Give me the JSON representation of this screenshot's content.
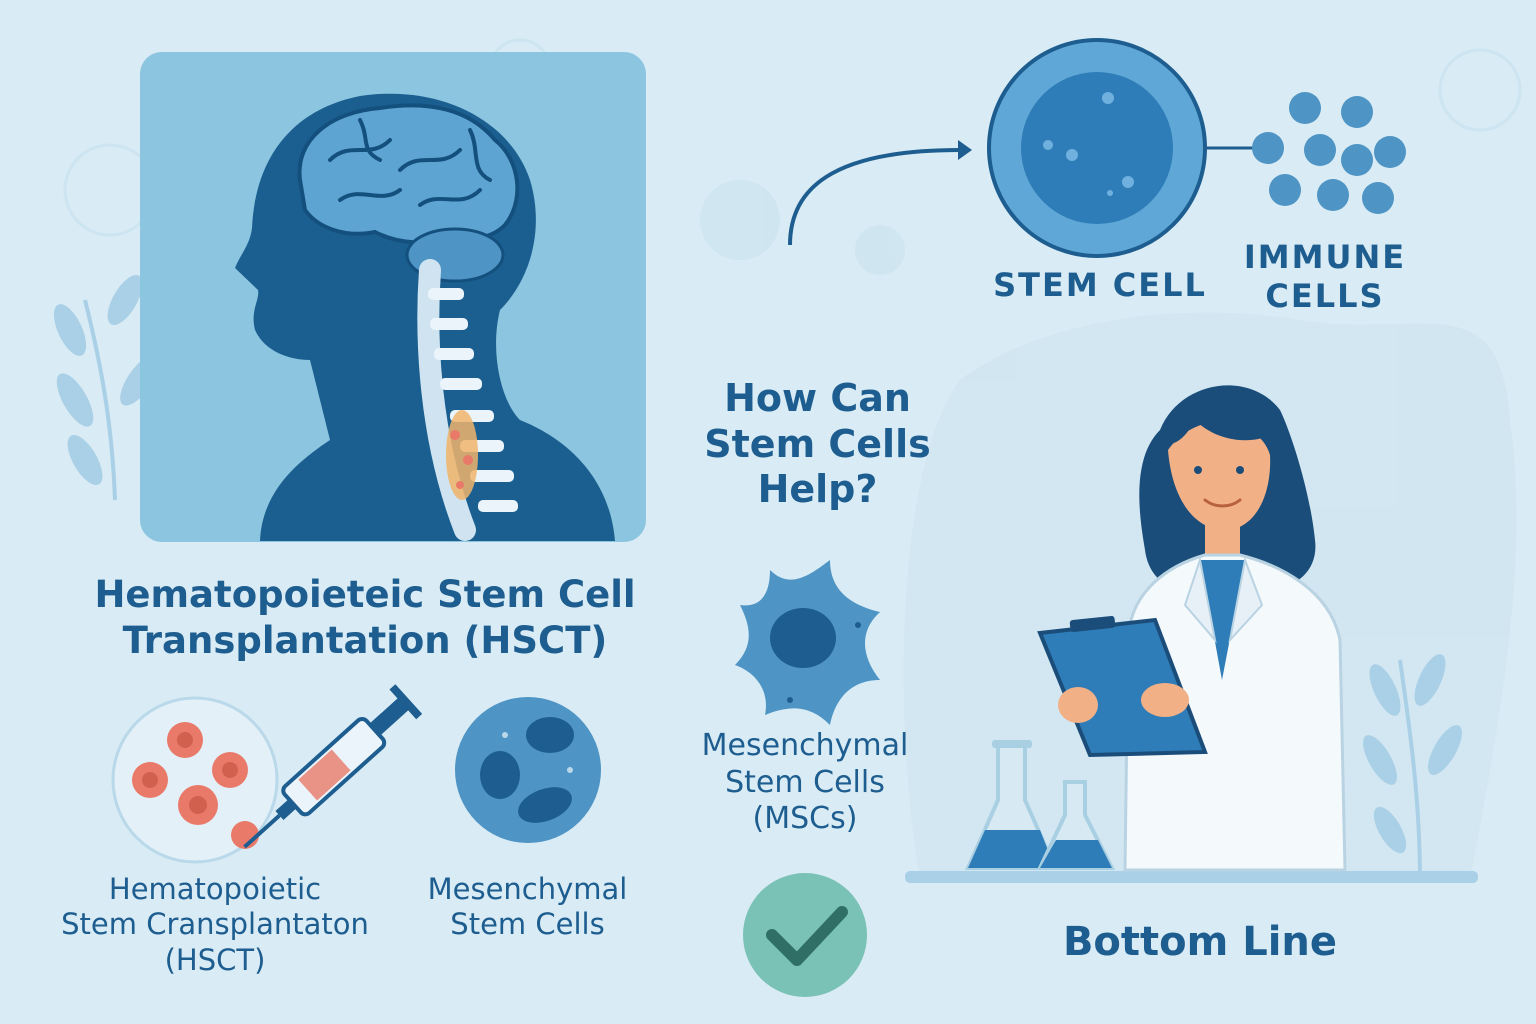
{
  "left": {
    "title": "Hematopoieteic Stem Cell\nTransplantation (HSCT)",
    "hsct_caption": "Hematopoietic\nStem Cransplantaton\n(HSCT)",
    "msc_caption": "Mesenchymal\nStem Cells"
  },
  "center": {
    "question": "How Can\nStem Cells\nHelp?",
    "msc_caption": "Mesenchymal\nStem Cells\n(MSCs)"
  },
  "right": {
    "stem_cell_label": "STEM CELL",
    "immune_cells_label": "IMMUNE\nCELLS",
    "bottom_line": "Bottom Line"
  },
  "colors": {
    "background": "#d9ebf4",
    "dark_blue": "#1d5d8f",
    "mid_blue": "#4e94c4",
    "accent_red": "#e97a6a",
    "check_green": "#2f8a7a"
  }
}
